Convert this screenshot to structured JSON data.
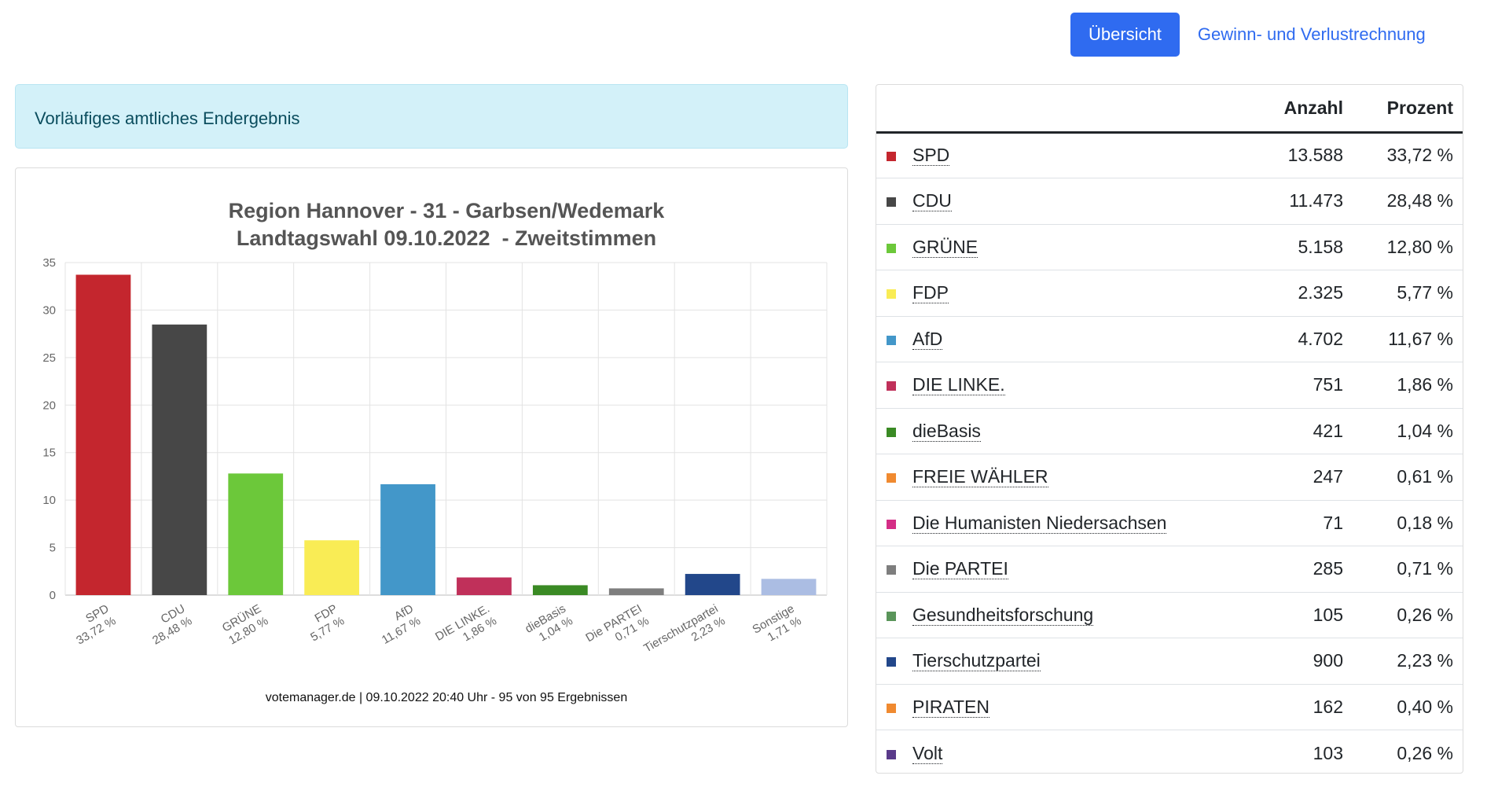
{
  "nav": {
    "overview_label": "Übersicht",
    "pl_label": "Gewinn- und Verlustrechnung"
  },
  "alert": {
    "text": "Vorläufiges amtliches Endergebnis"
  },
  "chart_data": {
    "type": "bar",
    "title": "Region Hannover - 31 - Garbsen/Wedemark",
    "subtitle": "Landtagswahl 09.10.2022  - Zweitstimmen",
    "categories": [
      "SPD",
      "CDU",
      "GRÜNE",
      "FDP",
      "AfD",
      "DIE LINKE.",
      "dieBasis",
      "Die PARTEI",
      "Tierschutzpartei",
      "Sonstige"
    ],
    "category_labels": [
      "33,72 %",
      "28,48 %",
      "12,80 %",
      "5,77 %",
      "11,67 %",
      "1,86 %",
      "1,04 %",
      "0,71 %",
      "2,23 %",
      "1,71 %"
    ],
    "values": [
      33.72,
      28.48,
      12.8,
      5.77,
      11.67,
      1.86,
      1.04,
      0.71,
      2.23,
      1.71
    ],
    "colors": [
      "#c4262e",
      "#474747",
      "#6cc83a",
      "#f9ec55",
      "#4397c9",
      "#c0305a",
      "#3a8a24",
      "#7e7e7e",
      "#22478a",
      "#abbde3"
    ],
    "ylim": [
      0,
      35
    ],
    "yticks": [
      0,
      5,
      10,
      15,
      20,
      25,
      30,
      35
    ],
    "grid": true,
    "footer": "votemanager.de | 09.10.2022 20:40 Uhr - 95 von 95 Ergebnissen"
  },
  "table": {
    "headers": {
      "name": "",
      "count": "Anzahl",
      "percent": "Prozent"
    },
    "rows": [
      {
        "name": "SPD",
        "count": "13.588",
        "percent": "33,72 %",
        "color": "#c4262e"
      },
      {
        "name": "CDU",
        "count": "11.473",
        "percent": "28,48 %",
        "color": "#474747"
      },
      {
        "name": "GRÜNE",
        "count": "5.158",
        "percent": "12,80 %",
        "color": "#6cc83a"
      },
      {
        "name": "FDP",
        "count": "2.325",
        "percent": "5,77 %",
        "color": "#f9ec55"
      },
      {
        "name": "AfD",
        "count": "4.702",
        "percent": "11,67 %",
        "color": "#4397c9"
      },
      {
        "name": "DIE LINKE.",
        "count": "751",
        "percent": "1,86 %",
        "color": "#c0305a"
      },
      {
        "name": "dieBasis",
        "count": "421",
        "percent": "1,04 %",
        "color": "#3a8a24"
      },
      {
        "name": "FREIE WÄHLER",
        "count": "247",
        "percent": "0,61 %",
        "color": "#f08a30"
      },
      {
        "name": "Die Humanisten Niedersachsen",
        "count": "71",
        "percent": "0,18 %",
        "color": "#d42e86"
      },
      {
        "name": "Die PARTEI",
        "count": "285",
        "percent": "0,71 %",
        "color": "#7e7e7e"
      },
      {
        "name": "Gesundheitsforschung",
        "count": "105",
        "percent": "0,26 %",
        "color": "#5a955a"
      },
      {
        "name": "Tierschutzpartei",
        "count": "900",
        "percent": "2,23 %",
        "color": "#22478a"
      },
      {
        "name": "PIRATEN",
        "count": "162",
        "percent": "0,40 %",
        "color": "#f08a30"
      },
      {
        "name": "Volt",
        "count": "103",
        "percent": "0,26 %",
        "color": "#5a3a8a"
      }
    ]
  }
}
